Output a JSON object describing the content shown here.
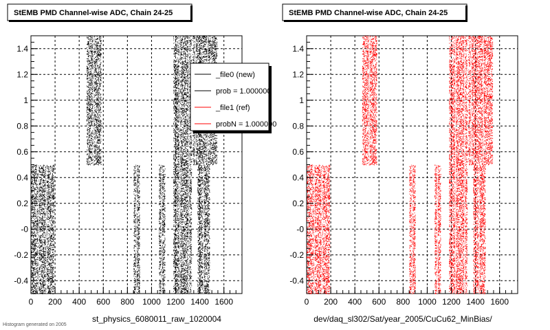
{
  "footnote": "Histogram generated on 2005",
  "legend": {
    "entries": [
      {
        "label": "_file0 (new)",
        "color": "#000000"
      },
      {
        "label": "prob = 1.000000",
        "color": "#000000"
      },
      {
        "label": "_file1 (ref)",
        "color": "#ff0000"
      },
      {
        "label": "probN = 1.000000",
        "color": "#ff0000"
      }
    ]
  },
  "chart_data": [
    {
      "type": "scatter",
      "title": "StEMB PMD Channel-wise ADC, Chain 24-25",
      "xlabel": "st_physics_6080011_raw_1020004",
      "ylabel": "",
      "xlim": [
        0,
        1750
      ],
      "ylim": [
        -0.5,
        1.5
      ],
      "xticks": [
        "0",
        "200",
        "400",
        "600",
        "800",
        "1000",
        "1200",
        "1400",
        "1600"
      ],
      "yticks": [
        "-0.4",
        "-0.2",
        "-0",
        "0.2",
        "0.4",
        "0.6",
        "0.8",
        "1",
        "1.2",
        "1.4"
      ],
      "grid": true,
      "legend_placement": "top-right",
      "series": [
        {
          "name": "_file0 (new)",
          "color": "#000000",
          "regions": [
            {
              "x": [
                0,
                190
              ],
              "y": [
                -0.5,
                0.5
              ]
            },
            {
              "x": [
                460,
                580
              ],
              "y": [
                0.5,
                1.5
              ]
            },
            {
              "x": [
                850,
                900
              ],
              "y": [
                -0.5,
                0.5
              ]
            },
            {
              "x": [
                1060,
                1110
              ],
              "y": [
                -0.5,
                0.5
              ]
            },
            {
              "x": [
                1180,
                1290
              ],
              "y": [
                -0.5,
                1.5
              ]
            },
            {
              "x": [
                1290,
                1330
              ],
              "y": [
                -0.5,
                1.5
              ]
            },
            {
              "x": [
                1340,
                1390
              ],
              "y": [
                0.5,
                1.5
              ]
            },
            {
              "x": [
                1380,
                1480
              ],
              "y": [
                -0.5,
                0.5
              ]
            },
            {
              "x": [
                1390,
                1540
              ],
              "y": [
                0.5,
                1.5
              ]
            }
          ]
        }
      ]
    },
    {
      "type": "scatter",
      "title": "StEMB PMD Channel-wise ADC, Chain 24-25",
      "xlabel": "dev/daq_sl302/Sat/year_2005/CuCu62_MinBias/",
      "ylabel": "",
      "xlim": [
        0,
        1750
      ],
      "ylim": [
        -0.5,
        1.5
      ],
      "xticks": [
        "0",
        "200",
        "400",
        "600",
        "800",
        "1000",
        "1200",
        "1400",
        "1600"
      ],
      "yticks": [
        "-0.4",
        "-0.2",
        "-0",
        "0.2",
        "0.4",
        "0.6",
        "0.8",
        "1",
        "1.2",
        "1.4"
      ],
      "grid": true,
      "series": [
        {
          "name": "_file1 (ref)",
          "color": "#ff0000",
          "regions": [
            {
              "x": [
                0,
                190
              ],
              "y": [
                -0.5,
                0.5
              ]
            },
            {
              "x": [
                460,
                580
              ],
              "y": [
                0.5,
                1.5
              ]
            },
            {
              "x": [
                850,
                900
              ],
              "y": [
                -0.5,
                0.5
              ]
            },
            {
              "x": [
                1060,
                1110
              ],
              "y": [
                -0.5,
                0.5
              ]
            },
            {
              "x": [
                1180,
                1290
              ],
              "y": [
                -0.5,
                1.5
              ]
            },
            {
              "x": [
                1290,
                1330
              ],
              "y": [
                -0.5,
                1.5
              ]
            },
            {
              "x": [
                1340,
                1390
              ],
              "y": [
                0.5,
                1.5
              ]
            },
            {
              "x": [
                1380,
                1480
              ],
              "y": [
                -0.5,
                0.5
              ]
            },
            {
              "x": [
                1390,
                1540
              ],
              "y": [
                0.5,
                1.5
              ]
            }
          ]
        }
      ]
    }
  ]
}
